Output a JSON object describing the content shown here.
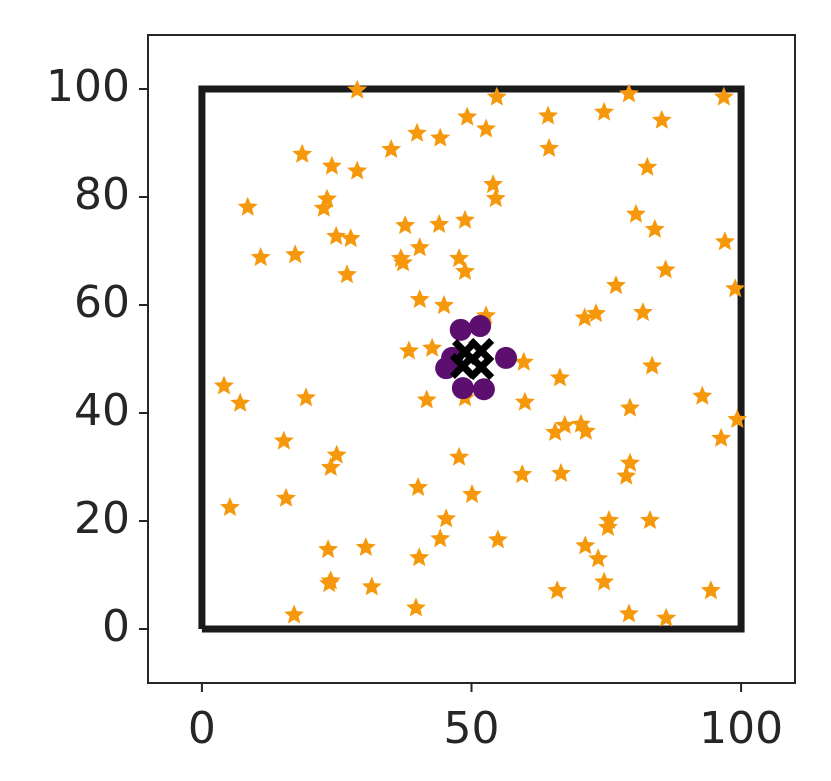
{
  "chart_data": {
    "type": "scatter",
    "xlim": [
      -10,
      110
    ],
    "ylim": [
      -10,
      110
    ],
    "xticks": [
      0,
      50,
      100
    ],
    "yticks": [
      0,
      20,
      40,
      60,
      80,
      100
    ],
    "grid": false,
    "series": [
      {
        "style": "line",
        "color": "#1a1a1a",
        "x": [
          0,
          100,
          100,
          0,
          0
        ],
        "y": [
          0,
          0,
          100,
          100,
          0
        ]
      },
      {
        "style": "star",
        "color": "#f5980c",
        "x": [
          28.8,
          54.7,
          79.2,
          96.8,
          64.2,
          74.6,
          49.2,
          52.7,
          39.9,
          44.2,
          85.3,
          35.1,
          64.4,
          18.6,
          24.1,
          28.8,
          82.6,
          54,
          54.5,
          80.5,
          8.5,
          23.2,
          22.6,
          84,
          37.7,
          44,
          48.8,
          24.9,
          27.6,
          97,
          10.9,
          17.3,
          40.4,
          36.9,
          37.3,
          47.7,
          48.8,
          26.9,
          86,
          76.8,
          98.9,
          40.4,
          44.9,
          52.7,
          73.1,
          71,
          81.8,
          38.4,
          42.7,
          59.7,
          83.5,
          4.1,
          66.4,
          7.1,
          19.3,
          41.7,
          48.8,
          59.9,
          92.8,
          79.4,
          99.3,
          67.3,
          70.3,
          65.5,
          71.2,
          96.3,
          15.2,
          25,
          23.9,
          47.7,
          79.4,
          78.7,
          59.4,
          66.6,
          40.1,
          50.1,
          5.2,
          15.6,
          45.3,
          75.5,
          75.3,
          83.1,
          44.2,
          54.9,
          30.4,
          23.4,
          40.3,
          71.1,
          73.5,
          23.9,
          23.6,
          31.5,
          74.6,
          65.9,
          94.4,
          39.7,
          79.2,
          86.1,
          17.1
        ],
        "y": [
          99.8,
          98.5,
          99.1,
          98.5,
          95,
          95.7,
          94.8,
          92.6,
          91.8,
          90.9,
          94.2,
          88.8,
          89,
          87.9,
          85.7,
          84.8,
          85.5,
          82.3,
          79.7,
          76.8,
          78.1,
          79.6,
          77.9,
          74,
          74.7,
          74.9,
          75.7,
          72.7,
          72.3,
          71.7,
          68.8,
          69.3,
          70.6,
          68.6,
          67.8,
          68.6,
          66.2,
          65.6,
          66.5,
          63.6,
          63,
          61,
          59.9,
          58,
          58.4,
          57.6,
          58.6,
          51.5,
          52,
          49.4,
          48.7,
          45,
          46.5,
          41.8,
          42.8,
          42.4,
          42.8,
          42,
          43.1,
          40.9,
          38.8,
          37.7,
          37.9,
          36.4,
          36.6,
          35.3,
          34.8,
          32.2,
          29.9,
          31.8,
          30.7,
          28.3,
          28.6,
          28.8,
          26.2,
          24.9,
          22.5,
          24.2,
          20.4,
          20.1,
          18.8,
          20.1,
          16.7,
          16.5,
          15.1,
          14.7,
          13.2,
          15.4,
          13,
          8.9,
          8.4,
          7.8,
          8.7,
          7.1,
          7.1,
          3.9,
          2.8,
          2,
          2.6
        ]
      },
      {
        "style": "circle",
        "color": "#5c0f6e",
        "x": [
          48,
          51.6,
          45.3,
          46.4,
          56.4,
          48.4,
          52.3
        ],
        "y": [
          55.4,
          56.1,
          48.3,
          50.2,
          50.2,
          44.6,
          44.4
        ]
      },
      {
        "style": "x",
        "color": "#000000",
        "x": [
          48.8,
          51.8,
          48.4,
          51.8
        ],
        "y": [
          51.3,
          51.5,
          48.7,
          48.5
        ]
      }
    ]
  }
}
